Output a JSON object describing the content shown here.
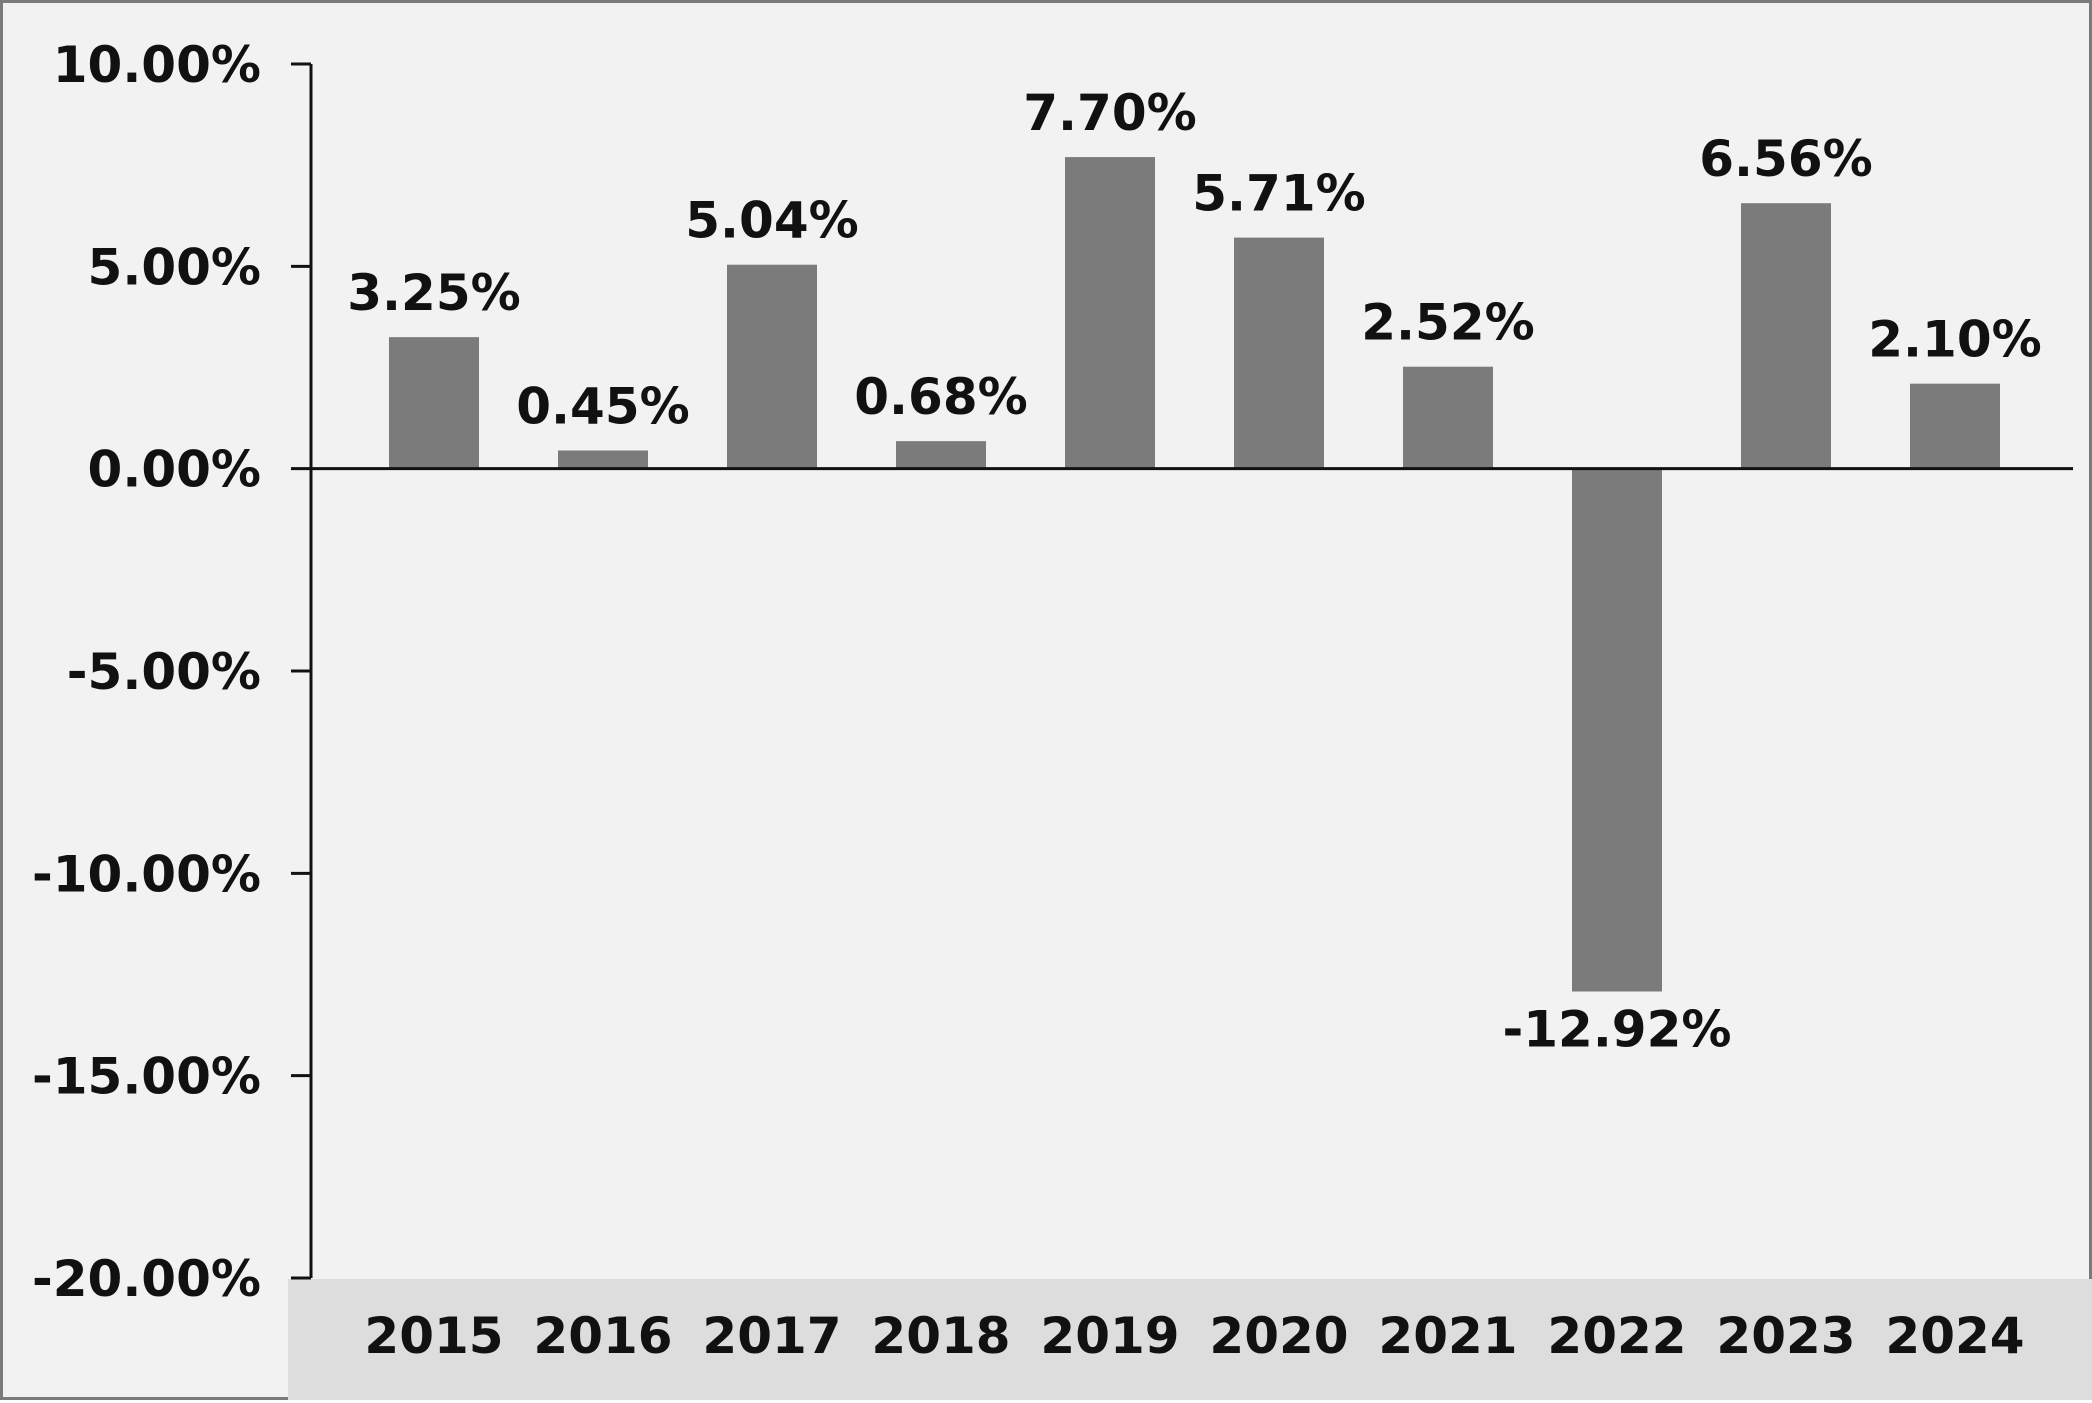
{
  "chart_data": {
    "type": "bar",
    "title": "",
    "xlabel": "",
    "ylabel": "",
    "categories": [
      "2015",
      "2016",
      "2017",
      "2018",
      "2019",
      "2020",
      "2021",
      "2022",
      "2023",
      "2024"
    ],
    "values": [
      3.25,
      0.45,
      5.04,
      0.68,
      7.7,
      5.71,
      2.52,
      -12.92,
      6.56,
      2.1
    ],
    "value_labels": [
      "3.25%",
      "0.45%",
      "5.04%",
      "0.68%",
      "7.70%",
      "5.71%",
      "2.52%",
      "-12.92%",
      "6.56%",
      "2.10%"
    ],
    "y_ticks": [
      10,
      5,
      0,
      -5,
      -10,
      -15,
      -20
    ],
    "y_tick_labels": [
      "10.00%",
      "5.00%",
      "0.00%",
      "-5.00%",
      "-10.00%",
      "-15.00%",
      "-20.00%"
    ],
    "ylim": [
      -20,
      10
    ],
    "grid": false,
    "legend": "none",
    "colors": {
      "bar": "#7b7b7b",
      "background": "#f1f2f1",
      "category_band": "#dcdddc",
      "axis": "#111111",
      "border": "#7a7a7a"
    }
  }
}
